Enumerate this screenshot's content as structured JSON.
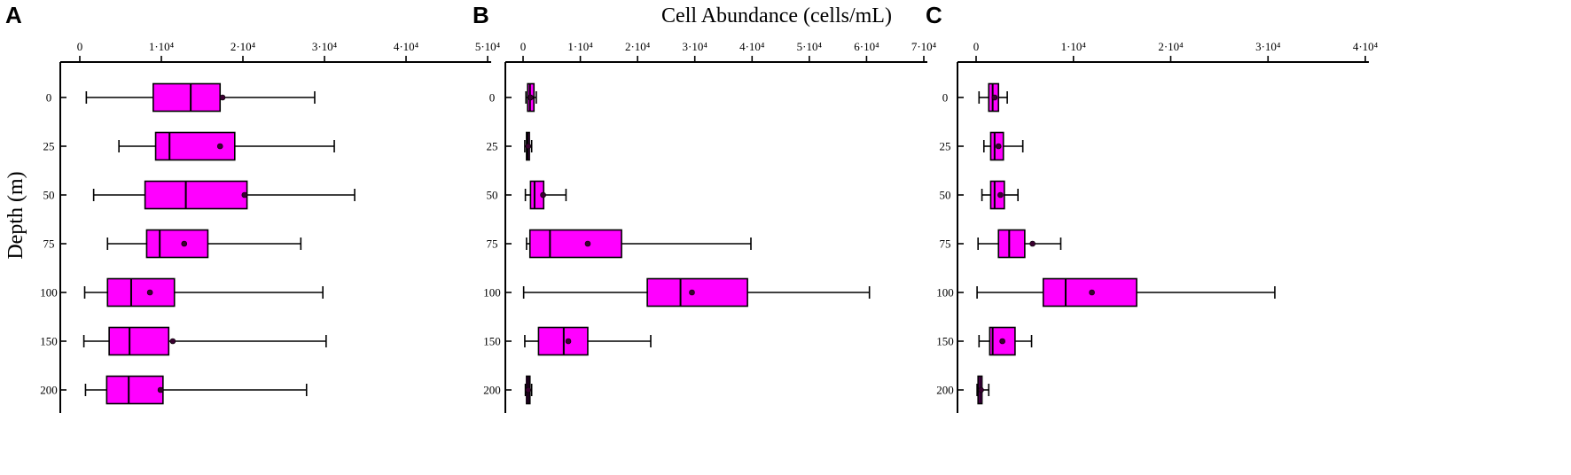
{
  "figure": {
    "x_axis_title": "Cell Abundance  (cells/mL)",
    "y_axis_title": "Depth (m)"
  },
  "colors": {
    "box_fill": "#ff00ff",
    "outline": "#000000",
    "mean_marker": "#3a0030"
  },
  "chart_data": [
    {
      "type": "boxplot",
      "panel": "A",
      "orientation": "horizontal",
      "xlim": [
        0,
        50000
      ],
      "x_ticks": [
        0,
        10000,
        20000,
        30000,
        40000,
        50000
      ],
      "x_tick_labels": [
        "0",
        "1·10⁴",
        "2·10⁴",
        "3·10⁴",
        "4·10⁴",
        "5·10⁴"
      ],
      "x_axis_position": "top",
      "categories": [
        "0",
        "25",
        "50",
        "75",
        "100",
        "150",
        "200"
      ],
      "boxes": [
        {
          "min": 800,
          "q1": 9000,
          "median": 13600,
          "q3": 17200,
          "max": 28800,
          "mean": 17500
        },
        {
          "min": 4800,
          "q1": 9300,
          "median": 11000,
          "q3": 19000,
          "max": 31200,
          "mean": 17200
        },
        {
          "min": 1700,
          "q1": 8000,
          "median": 13000,
          "q3": 20500,
          "max": 33700,
          "mean": 20200
        },
        {
          "min": 3400,
          "q1": 8200,
          "median": 9800,
          "q3": 15700,
          "max": 27100,
          "mean": 12800
        },
        {
          "min": 600,
          "q1": 3400,
          "median": 6300,
          "q3": 11600,
          "max": 29800,
          "mean": 8600
        },
        {
          "min": 500,
          "q1": 3600,
          "median": 6100,
          "q3": 10900,
          "max": 30200,
          "mean": 11400
        },
        {
          "min": 700,
          "q1": 3300,
          "median": 6000,
          "q3": 10200,
          "max": 27800,
          "mean": 9900
        }
      ]
    },
    {
      "type": "boxplot",
      "panel": "B",
      "orientation": "horizontal",
      "xlim": [
        0,
        70000
      ],
      "x_ticks": [
        0,
        10000,
        20000,
        30000,
        40000,
        50000,
        60000,
        70000
      ],
      "x_tick_labels": [
        "0",
        "1·10⁴",
        "2·10⁴",
        "3·10⁴",
        "4·10⁴",
        "5·10⁴",
        "6·10⁴",
        "7·10⁴"
      ],
      "x_axis_position": "top",
      "categories": [
        "0",
        "25",
        "50",
        "75",
        "100",
        "150",
        "200"
      ],
      "boxes": [
        {
          "min": 500,
          "q1": 800,
          "median": 1200,
          "q3": 1900,
          "max": 2300,
          "mean": 1300
        },
        {
          "min": 300,
          "q1": 600,
          "median": 800,
          "q3": 1100,
          "max": 1500,
          "mean": 900
        },
        {
          "min": 400,
          "q1": 1300,
          "median": 2000,
          "q3": 3600,
          "max": 7500,
          "mean": 3500
        },
        {
          "min": 600,
          "q1": 1200,
          "median": 4700,
          "q3": 17200,
          "max": 39800,
          "mean": 11300
        },
        {
          "min": 100,
          "q1": 21700,
          "median": 27500,
          "q3": 39200,
          "max": 60500,
          "mean": 29500
        },
        {
          "min": 300,
          "q1": 2700,
          "median": 7100,
          "q3": 11300,
          "max": 22300,
          "mean": 7900
        },
        {
          "min": 400,
          "q1": 600,
          "median": 900,
          "q3": 1200,
          "max": 1500,
          "mean": 900
        }
      ]
    },
    {
      "type": "boxplot",
      "panel": "C",
      "orientation": "horizontal",
      "xlim": [
        0,
        40000
      ],
      "x_ticks": [
        0,
        10000,
        20000,
        30000,
        40000
      ],
      "x_tick_labels": [
        "0",
        "1·10⁴",
        "2·10⁴",
        "3·10⁴",
        "4·10⁴"
      ],
      "x_axis_position": "top",
      "categories": [
        "0",
        "25",
        "50",
        "75",
        "100",
        "150",
        "200"
      ],
      "boxes": [
        {
          "min": 300,
          "q1": 1300,
          "median": 1700,
          "q3": 2300,
          "max": 3200,
          "mean": 1900
        },
        {
          "min": 800,
          "q1": 1500,
          "median": 1900,
          "q3": 2800,
          "max": 4800,
          "mean": 2300
        },
        {
          "min": 600,
          "q1": 1500,
          "median": 1900,
          "q3": 2900,
          "max": 4300,
          "mean": 2500
        },
        {
          "min": 200,
          "q1": 2300,
          "median": 3400,
          "q3": 5000,
          "max": 8700,
          "mean": 5800
        },
        {
          "min": 100,
          "q1": 6900,
          "median": 9200,
          "q3": 16500,
          "max": 30700,
          "mean": 11900
        },
        {
          "min": 300,
          "q1": 1400,
          "median": 1700,
          "q3": 4000,
          "max": 5700,
          "mean": 2700
        },
        {
          "min": 100,
          "q1": 200,
          "median": 400,
          "q3": 600,
          "max": 1300,
          "mean": 500
        }
      ]
    }
  ]
}
